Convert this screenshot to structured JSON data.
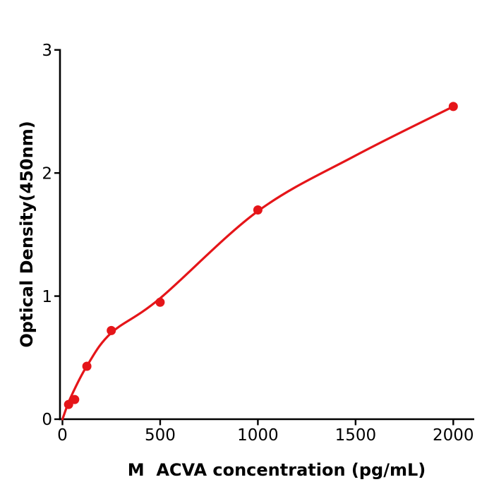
{
  "chart_data": {
    "type": "scatter",
    "title": "",
    "xlabel": "M  ACVA concentration (pg/mL)",
    "ylabel": "Optical Density(450nm)",
    "points": {
      "x": [
        31.25,
        62.5,
        125,
        250,
        500,
        1000,
        2000
      ],
      "y": [
        0.12,
        0.16,
        0.43,
        0.72,
        0.95,
        1.7,
        2.54
      ]
    },
    "fit_curve_x": [
      0,
      43,
      126,
      249,
      498,
      1000,
      1498,
      2000
    ],
    "fit_curve_y": [
      0,
      0.18,
      0.435,
      0.7,
      0.98,
      1.69,
      2.14,
      2.54
    ],
    "xticks": [
      0,
      500,
      1000,
      1500,
      2000
    ],
    "xtick_labels": [
      "0",
      "500",
      "1000",
      "1500",
      "2000"
    ],
    "yticks": [
      0,
      1,
      2,
      3
    ],
    "ytick_labels": [
      "0",
      "1",
      "2",
      "3"
    ],
    "xlim": [
      0,
      2100
    ],
    "ylim": [
      0,
      3
    ],
    "grid": false,
    "legend": false,
    "marker_color": "#e51519",
    "line_color": "#e51519",
    "axis_color": "#000000",
    "text_color": "#000000",
    "background": "#ffffff"
  }
}
